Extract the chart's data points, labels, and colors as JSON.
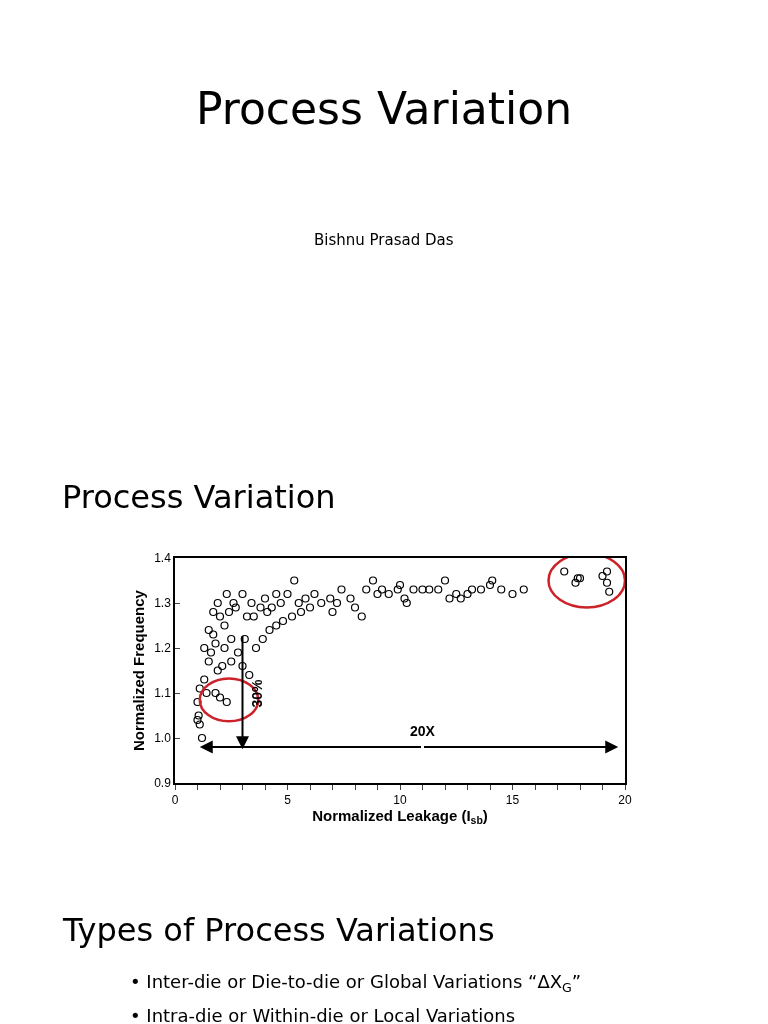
{
  "chart_data": {
    "type": "scatter",
    "title": "Process Variation",
    "subtitle": "Bishnu Prasad Das",
    "xlabel": "Normalized Leakage (I$_{sb}$)",
    "ylabel": "Normalized Frequency",
    "annotations": [
      "Process Variation",
      "30%",
      "20X",
      "Types of Process Variations",
      "• Inter-die or Die-to-die or Global Variations “ΔX$_{G}$”",
      "• Intra-die or Within-die or Local Variations"
    ],
    "series": [
      {
        "color": "#000000",
        "x": [
          1.0,
          1.05,
          1.1,
          1.2,
          1.0,
          1.1,
          1.3,
          1.5,
          1.4,
          1.8,
          2.0,
          2.3,
          1.9,
          2.1,
          1.6,
          1.3,
          1.5,
          1.7,
          1.9,
          2.2,
          2.5,
          2.8,
          2.5,
          3.0,
          3.3,
          3.1,
          2.7,
          3.0,
          3.4,
          3.6,
          3.9,
          4.2,
          4.5,
          4.8,
          5.2,
          5.6,
          4.0,
          4.5,
          2.3,
          2.0,
          1.7,
          2.4,
          3.5,
          4.1,
          4.7,
          5.0,
          5.3,
          5.8,
          6.2,
          6.5,
          6.9,
          7.4,
          7.8,
          8.0,
          8.3,
          8.5,
          8.8,
          9.2,
          9.5,
          9.9,
          10.2,
          10.3,
          10.6,
          11.0,
          11.7,
          12.0,
          12.2,
          12.7,
          13.2,
          13.6,
          14.0,
          14.1,
          14.5,
          15.0,
          15.5,
          17.3,
          17.8,
          17.9,
          18.0,
          19.0,
          19.2,
          19.2,
          19.3,
          2.6,
          3.2,
          3.8,
          2.2,
          1.8,
          4.3,
          5.5,
          6.0,
          7.0,
          7.2,
          9.0,
          10.0,
          11.3,
          12.5,
          13.0
        ],
        "values": [
          1.04,
          1.05,
          1.03,
          1.0,
          1.08,
          1.11,
          1.13,
          1.17,
          1.1,
          1.1,
          1.09,
          1.08,
          1.15,
          1.16,
          1.19,
          1.2,
          1.24,
          1.28,
          1.3,
          1.25,
          1.22,
          1.19,
          1.17,
          1.16,
          1.14,
          1.22,
          1.29,
          1.32,
          1.3,
          1.2,
          1.22,
          1.24,
          1.25,
          1.26,
          1.27,
          1.28,
          1.31,
          1.32,
          1.32,
          1.27,
          1.23,
          1.28,
          1.27,
          1.28,
          1.3,
          1.32,
          1.35,
          1.31,
          1.32,
          1.3,
          1.31,
          1.33,
          1.31,
          1.29,
          1.27,
          1.33,
          1.35,
          1.33,
          1.32,
          1.33,
          1.31,
          1.3,
          1.33,
          1.33,
          1.33,
          1.35,
          1.31,
          1.31,
          1.33,
          1.33,
          1.34,
          1.35,
          1.33,
          1.32,
          1.33,
          1.37,
          1.345,
          1.355,
          1.355,
          1.36,
          1.37,
          1.345,
          1.325,
          1.3,
          1.27,
          1.29,
          1.2,
          1.21,
          1.29,
          1.3,
          1.29,
          1.28,
          1.3,
          1.32,
          1.34,
          1.33,
          1.32,
          1.32
        ]
      }
    ],
    "xlim": [
      0,
      20
    ],
    "xticks": [
      0,
      {
        "value": 1,
        "label": null
      },
      {
        "value": 2,
        "label": null
      },
      {
        "value": 3,
        "label": null
      },
      {
        "value": 4,
        "label": null
      },
      5,
      {
        "value": 6,
        "label": null
      },
      {
        "value": 7,
        "label": null
      },
      {
        "value": 8,
        "label": null
      },
      {
        "value": 9,
        "label": null
      },
      10,
      {
        "value": 11,
        "label": null
      },
      {
        "value": 12,
        "label": null
      },
      {
        "value": 13,
        "label": null
      },
      {
        "value": 14,
        "label": null
      },
      15,
      {
        "value": 16,
        "label": null
      },
      {
        "value": 17,
        "label": null
      },
      {
        "value": 18,
        "label": null
      },
      {
        "value": 19,
        "label": null
      },
      20
    ],
    "ylim": [
      0.9,
      1.4
    ],
    "yticks": [
      0.9,
      {
        "value": 1.0,
        "label": "1.0"
      },
      1.1,
      1.2,
      1.3,
      1.4
    ],
    "marker": "circle"
  }
}
